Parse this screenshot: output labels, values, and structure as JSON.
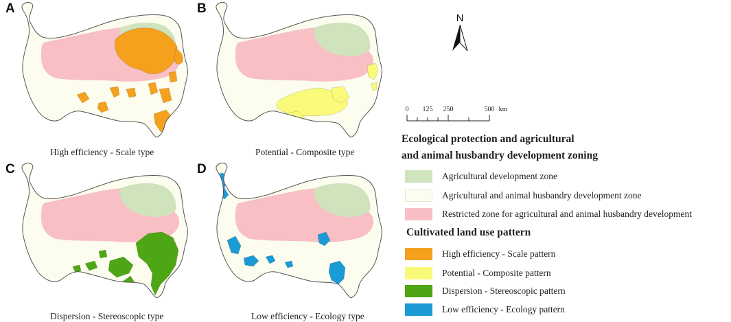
{
  "panels": [
    {
      "letter": "A",
      "caption": "High efficiency - Scale type"
    },
    {
      "letter": "B",
      "caption": "Potential - Composite type"
    },
    {
      "letter": "C",
      "caption": "Dispersion - Stereoscopic type"
    },
    {
      "letter": "D",
      "caption": "Low efficiency - Ecology type"
    }
  ],
  "north_arrow": {
    "label": "N"
  },
  "scale_bar": {
    "ticks": [
      "0",
      "125",
      "250",
      "500"
    ],
    "unit": "km"
  },
  "legend": {
    "zoning_title_line1": "Ecological protection and agricultural",
    "zoning_title_line2": "and animal husbandry development zoning",
    "zoning_items": [
      {
        "label": "Agricultural development zone",
        "color": "#cfe3bd"
      },
      {
        "label": "Agricultural and animal husbandry development zone",
        "color": "#fcfcef"
      },
      {
        "label": "Restricted zone for agricultural and animal husbandry development",
        "color": "#f8bfc4"
      }
    ],
    "pattern_title": "Cultivated land use pattern",
    "pattern_items": [
      {
        "label": "High efficiency - Scale pattern",
        "color": "#f5a11e"
      },
      {
        "label": "Potential - Composite pattern",
        "color": "#fafa7a"
      },
      {
        "label": "Dispersion - Stereoscopic pattern",
        "color": "#4ea614"
      },
      {
        "label": "Low efficiency - Ecology pattern",
        "color": "#1b9bd6"
      }
    ]
  },
  "colors": {
    "outline": "#555555",
    "region_base": "#fcfcef",
    "agri_zone": "#cfe3bd",
    "restricted_zone": "#f8bfc4"
  }
}
